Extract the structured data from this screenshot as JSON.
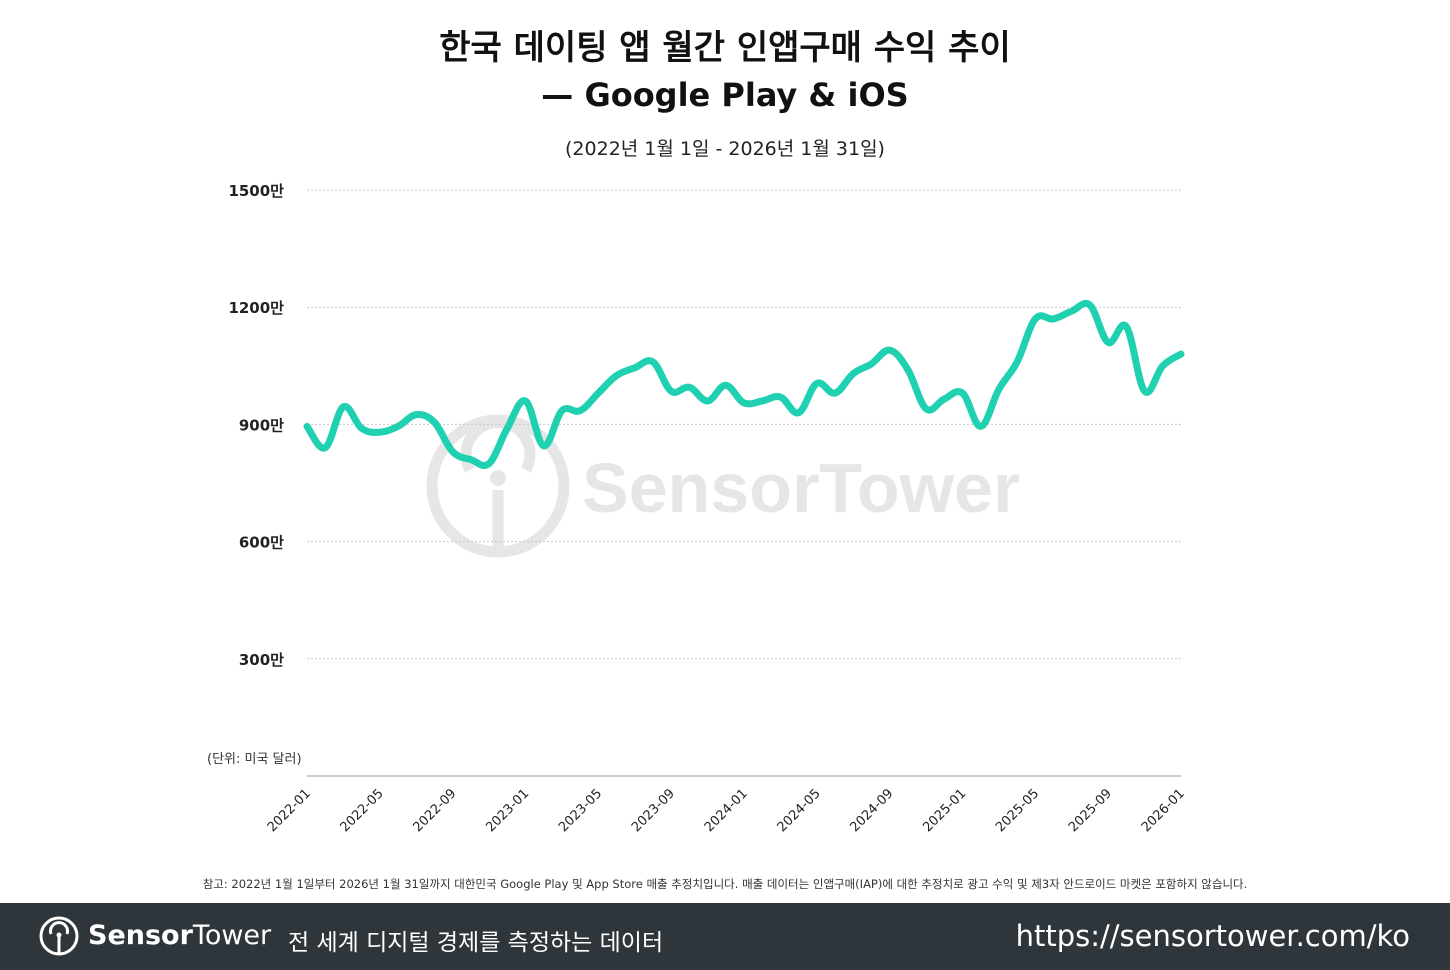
{
  "header": {
    "title_line1": "한국 데이팅 앱 월간 인앱구매 수익 추이",
    "title_line2": "— Google Play & iOS",
    "subtitle": "(2022년 1월 1일 - 2026년 1월 31일)"
  },
  "watermark": {
    "text": "SensorTower",
    "color": "#e6e6e6"
  },
  "chart_data": {
    "type": "line",
    "title": "한국 데이팅 앱 월간 인앱구매 수익 추이 — Google Play & iOS",
    "subtitle": "(2022년 1월 1일 - 2026년 1월 31일)",
    "unit_label": "(단위: 미국 달러)",
    "ylim": [
      0,
      15000000
    ],
    "y_ticks": [
      {
        "value": 3000000,
        "label": "300만"
      },
      {
        "value": 6000000,
        "label": "600만"
      },
      {
        "value": 9000000,
        "label": "900만"
      },
      {
        "value": 12000000,
        "label": "1200만"
      },
      {
        "value": 15000000,
        "label": "1500만"
      }
    ],
    "x_tick_labels": [
      "2022-01",
      "2022-05",
      "2022-09",
      "2023-01",
      "2023-05",
      "2023-09",
      "2024-01",
      "2024-05",
      "2024-09",
      "2025-01",
      "2025-05",
      "2025-09",
      "2026-01"
    ],
    "grid": true,
    "line_color": "#1fd1b0",
    "x": [
      "2022-01",
      "2022-02",
      "2022-03",
      "2022-04",
      "2022-05",
      "2022-06",
      "2022-07",
      "2022-08",
      "2022-09",
      "2022-10",
      "2022-11",
      "2022-12",
      "2023-01",
      "2023-02",
      "2023-03",
      "2023-04",
      "2023-05",
      "2023-06",
      "2023-07",
      "2023-08",
      "2023-09",
      "2023-10",
      "2023-11",
      "2023-12",
      "2024-01",
      "2024-02",
      "2024-03",
      "2024-04",
      "2024-05",
      "2024-06",
      "2024-07",
      "2024-08",
      "2024-09",
      "2024-10",
      "2024-11",
      "2024-12",
      "2025-01",
      "2025-02",
      "2025-03",
      "2025-04",
      "2025-05",
      "2025-06",
      "2025-07",
      "2025-08",
      "2025-09",
      "2025-10",
      "2025-11",
      "2025-12",
      "2026-01"
    ],
    "series": [
      {
        "values": [
          8950000,
          8400000,
          9450000,
          8900000,
          8800000,
          8950000,
          9250000,
          9050000,
          8300000,
          8100000,
          8000000,
          8900000,
          9600000,
          8450000,
          9350000,
          9350000,
          9800000,
          10250000,
          10450000,
          10600000,
          9850000,
          9950000,
          9600000,
          10000000,
          9550000,
          9600000,
          9700000,
          9300000,
          10050000,
          9800000,
          10300000,
          10550000,
          10900000,
          10400000,
          9400000,
          9650000,
          9800000,
          8950000,
          9900000,
          10600000,
          11700000,
          11700000,
          11900000,
          12050000,
          11100000,
          11500000,
          9850000,
          10500000,
          10800000
        ]
      }
    ]
  },
  "footnote": "참고: 2022년 1월 1일부터 2026년 1월 31일까지 대한민국 Google Play 및 App Store 매출 추정치입니다. 매출 데이터는 인앱구매(IAP)에 대한 추정치로 광고 수익 및 제3자 안드로이드 마켓은 포함하지 않습니다.",
  "footer": {
    "brand_bold": "Sensor",
    "brand_light": "Tower",
    "tagline": "전 세계 디지털 경제를 측정하는 데이터",
    "url": "https://sensortower.com/ko",
    "background": "#2e353b"
  }
}
